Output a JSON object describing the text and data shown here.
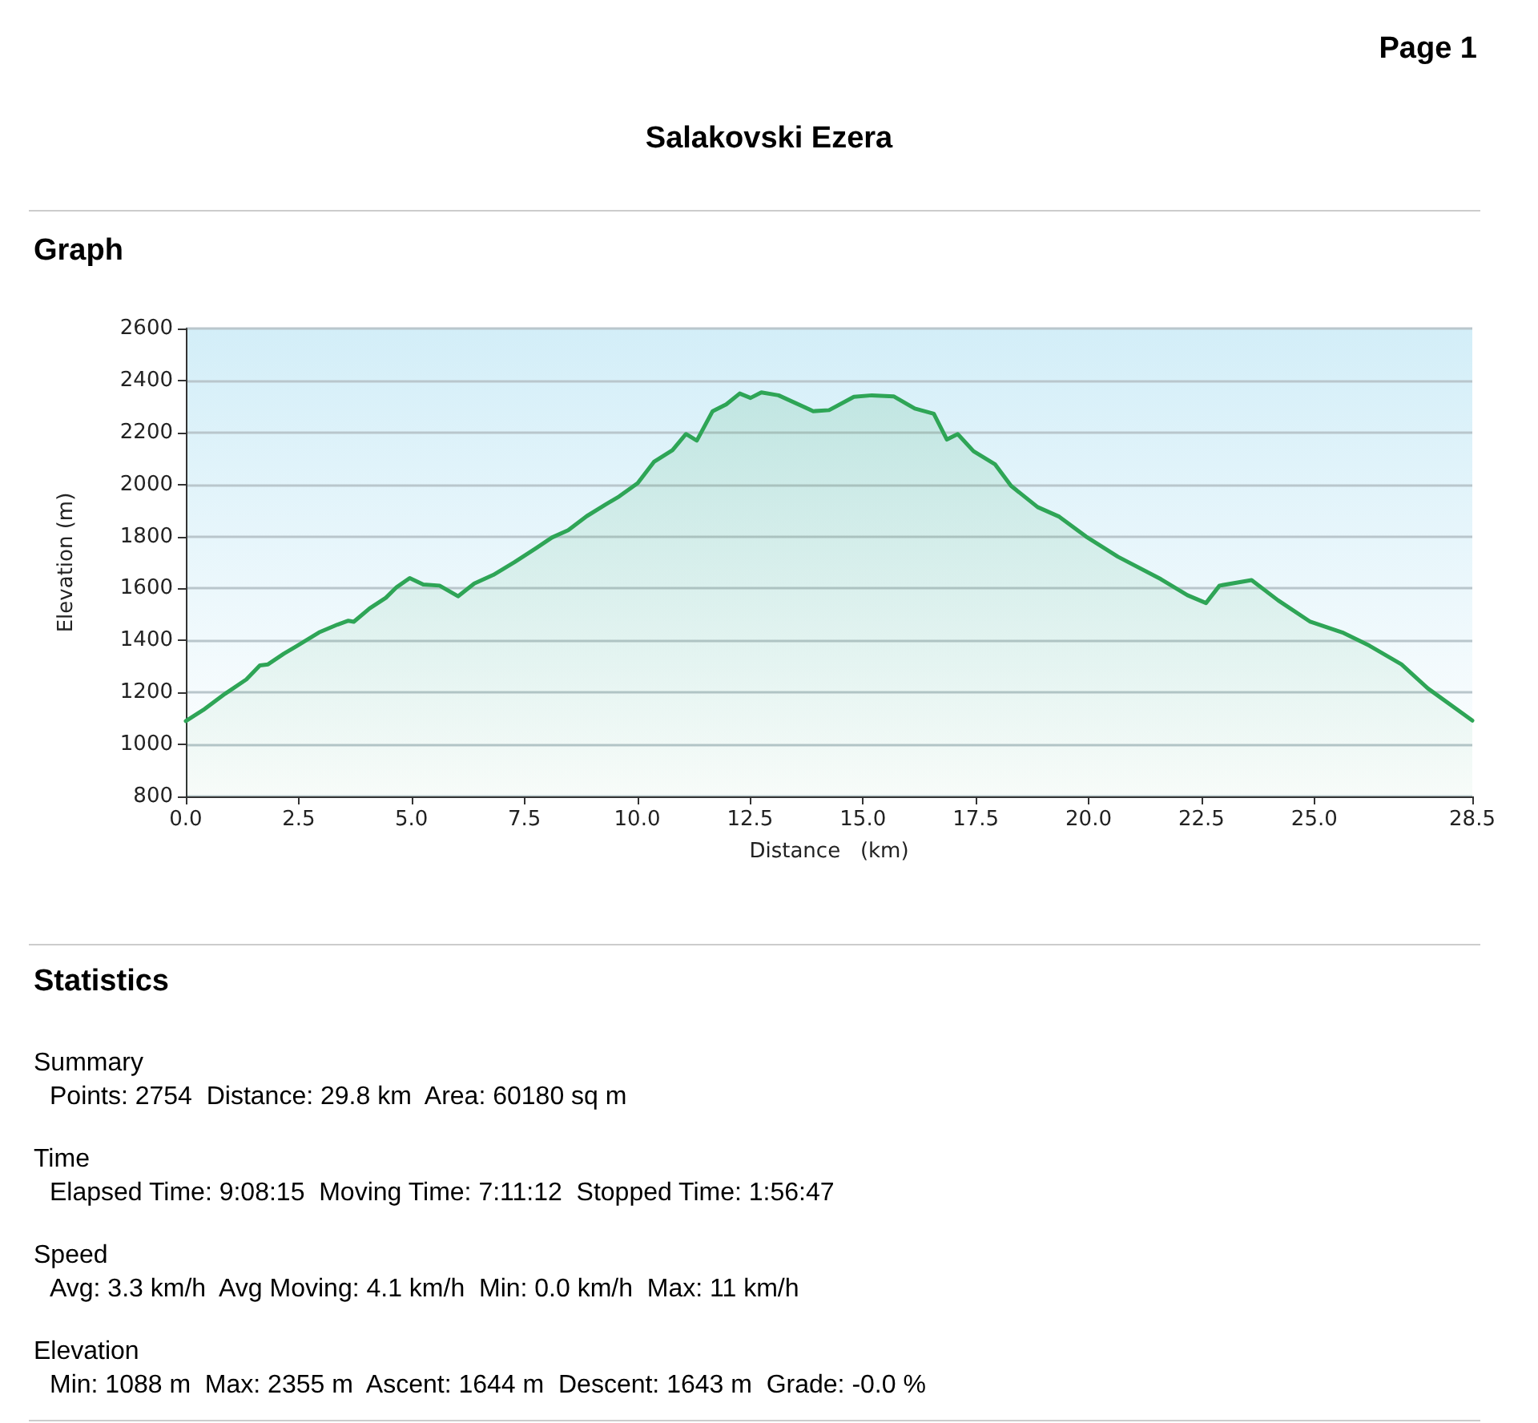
{
  "chart_data": {
    "type": "area",
    "title": "Salakovski Ezera",
    "xlabel": "Distance   (km)",
    "ylabel": "Elevation (m)",
    "annotations": [
      "Page 1",
      "Graph",
      "Statistics",
      "Summary",
      "Points: 2754  Distance: 29.8 km  Area: 60180 sq m",
      "Time",
      "Elapsed Time: 9:08:15  Moving Time: 7:11:12  Stopped Time: 1:56:47",
      "Speed",
      "Avg: 3.3 km/h  Avg Moving: 4.1 km/h  Min: 0.0 km/h  Max: 11 km/h",
      "Elevation",
      "Min: 1088 m  Max: 2355 m  Ascent: 1644 m  Descent: 1643 m  Grade: -0.0 %"
    ],
    "x": [
      0,
      0.39,
      0.87,
      1.34,
      1.64,
      1.82,
      2.17,
      2.47,
      2.95,
      3.36,
      3.6,
      3.72,
      4.07,
      4.43,
      4.67,
      4.96,
      5.26,
      5.62,
      6.03,
      6.39,
      6.81,
      7.28,
      7.76,
      8.11,
      8.47,
      8.88,
      9.3,
      9.6,
      10.01,
      10.37,
      10.78,
      11.08,
      11.32,
      11.67,
      11.97,
      12.27,
      12.51,
      12.75,
      13.13,
      13.9,
      14.25,
      14.8,
      15.2,
      15.68,
      16.15,
      16.57,
      16.86,
      17.1,
      17.45,
      17.93,
      18.28,
      18.87,
      19.35,
      19.94,
      20.65,
      21.6,
      22.19,
      22.6,
      22.9,
      23.61,
      24.2,
      24.91,
      25.62,
      26.22,
      26.93,
      27.52,
      28.5
    ],
    "series": [
      {
        "color": "#2ea556",
        "values": [
          1090,
          1133,
          1195,
          1250,
          1304,
          1308,
          1349,
          1380,
          1431,
          1461,
          1476,
          1472,
          1523,
          1564,
          1605,
          1640,
          1615,
          1611,
          1570,
          1619,
          1652,
          1701,
          1755,
          1796,
          1824,
          1878,
          1923,
          1954,
          2005,
          2087,
          2132,
          2194,
          2169,
          2282,
          2308,
          2350,
          2333,
          2354,
          2343,
          2282,
          2286,
          2337,
          2343,
          2339,
          2292,
          2272,
          2173,
          2194,
          2128,
          2077,
          1995,
          1913,
          1876,
          1800,
          1722,
          1636,
          1574,
          1544,
          1611,
          1632,
          1554,
          1472,
          1431,
          1380,
          1308,
          1215,
          1092
        ]
      }
    ],
    "xlim": [
      0,
      28.5
    ],
    "xticks": [
      {
        "value": 0,
        "label": "0.0"
      },
      {
        "value": 2.5,
        "label": "2.5"
      },
      {
        "value": 5,
        "label": "5.0"
      },
      {
        "value": 7.5,
        "label": "7.5"
      },
      {
        "value": 10,
        "label": "10.0"
      },
      {
        "value": 12.5,
        "label": "12.5"
      },
      {
        "value": 15,
        "label": "15.0"
      },
      {
        "value": 17.5,
        "label": "17.5"
      },
      {
        "value": 20,
        "label": "20.0"
      },
      {
        "value": 22.5,
        "label": "22.5"
      },
      {
        "value": 25,
        "label": "25.0"
      },
      {
        "value": 28.5,
        "label": "28.5"
      }
    ],
    "ylim": [
      800,
      2600
    ],
    "yticks": [
      800,
      1000,
      1200,
      1400,
      1600,
      1800,
      2000,
      2200,
      2400,
      2600
    ],
    "grid": "y",
    "marker": "none",
    "line_style": "solid"
  }
}
